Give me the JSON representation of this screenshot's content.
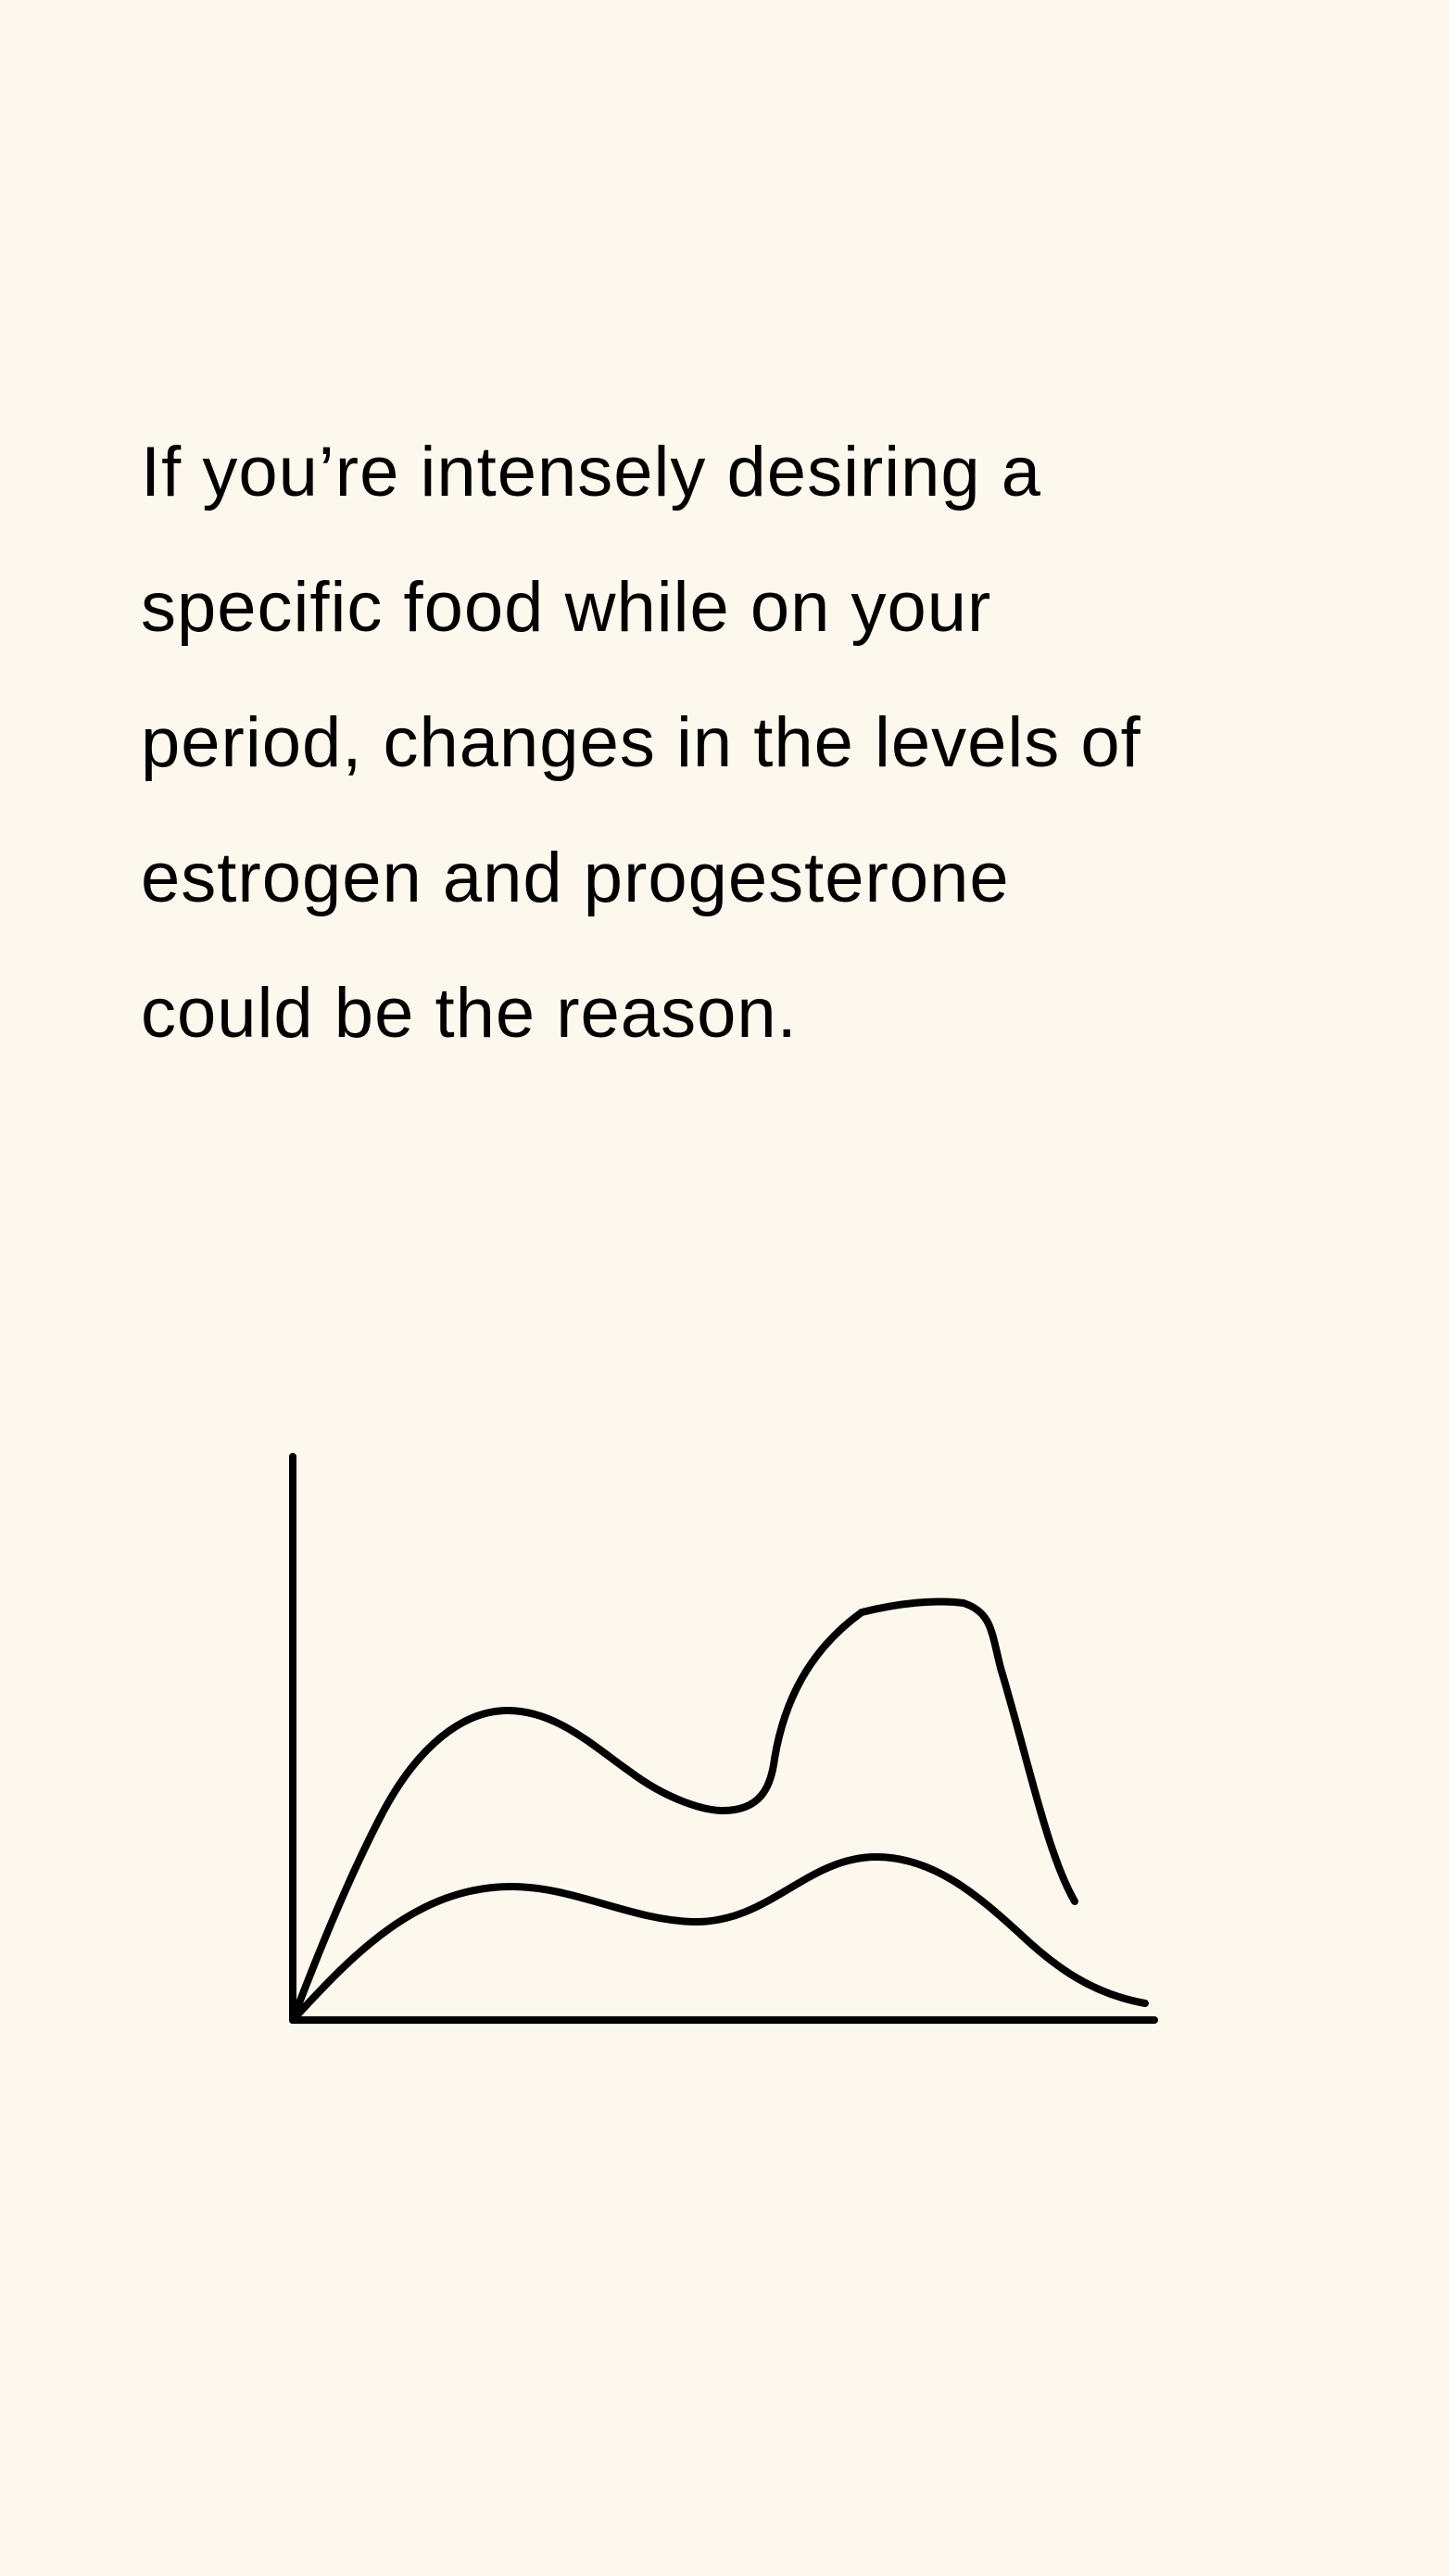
{
  "colors": {
    "background": "#FDF8EE",
    "ink": "#000000"
  },
  "body_text": {
    "lines": [
      "If you’re intensely desiring a",
      "specific food while on your",
      "period, changes in the levels of",
      "estrogen and progesterone",
      "could be the reason."
    ]
  },
  "illustration": {
    "icon": "line-graph-icon"
  }
}
